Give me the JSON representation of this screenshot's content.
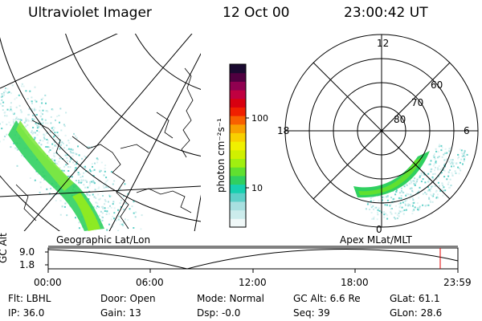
{
  "header": {
    "instrument": "Ultraviolet Imager",
    "date": "12 Oct 00",
    "time": "23:00:42 UT"
  },
  "colorbar": {
    "unit_label": "photon cm⁻²s⁻¹",
    "ticks": [
      "100",
      "10"
    ],
    "colors": [
      "#f0f8f8",
      "#ccecec",
      "#a8e0e0",
      "#5fd0c8",
      "#18d0b0",
      "#30d060",
      "#60e030",
      "#a0ef10",
      "#d0f000",
      "#f0f000",
      "#f8d000",
      "#f8a000",
      "#f86000",
      "#f02000",
      "#d80010",
      "#c00040",
      "#900050",
      "#500040",
      "#1a0a30"
    ]
  },
  "polar_plot": {
    "mlt_labels": [
      "12",
      "18",
      "6",
      "0"
    ],
    "lat_labels": [
      "60",
      "70",
      "80"
    ]
  },
  "labels": {
    "left_projection": "Geographic Lat/Lon",
    "right_projection": "Apex MLat/MLT"
  },
  "timeline": {
    "ylabel": "GC Alt",
    "ymax": "9.0",
    "ymin": "1.8",
    "ticks": [
      "00:00",
      "06:00",
      "12:00",
      "18:00",
      "23:59"
    ]
  },
  "status": {
    "filter": "Flt: LBHL",
    "ip": "IP: 36.0",
    "door": "Door: Open",
    "gain": "Gain: 13",
    "mode": "Mode: Normal",
    "dsp": "Dsp:   -0.0",
    "gc_alt": "GC Alt: 6.6 Re",
    "seq": "Seq: 39",
    "glat": "GLat:  61.1",
    "glon": "GLon:  28.6"
  }
}
